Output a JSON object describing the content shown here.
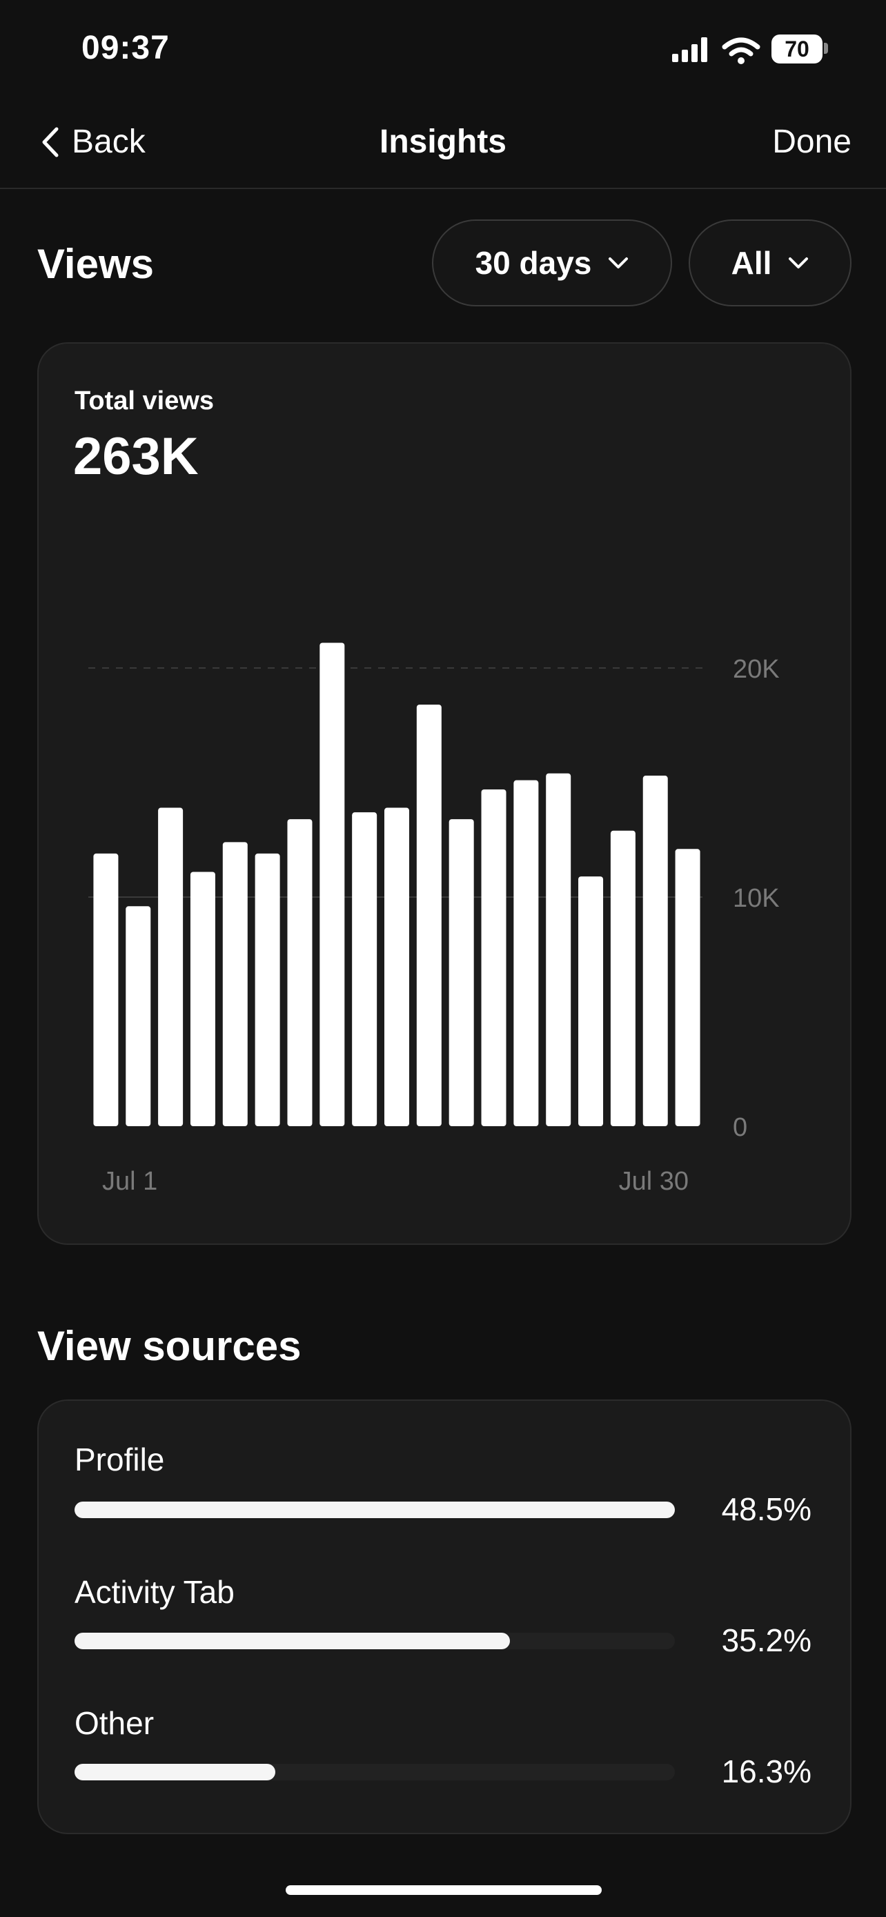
{
  "status": {
    "time": "09:37",
    "battery": "70"
  },
  "nav": {
    "back_label": "Back",
    "title": "Insights",
    "done_label": "Done"
  },
  "views": {
    "title": "Views",
    "range_filter": "30 days",
    "type_filter": "All",
    "total_label": "Total views",
    "total_value": "263K"
  },
  "chart_data": {
    "type": "bar",
    "values": [
      11900,
      9600,
      13900,
      11100,
      12400,
      11900,
      13400,
      21100,
      13700,
      13900,
      18400,
      13400,
      14700,
      15100,
      15400,
      10900,
      12900,
      15300,
      12100
    ],
    "ylim": [
      0,
      20000
    ],
    "y_ticks": [
      {
        "value": 20000,
        "label": "20K",
        "dashed": true
      },
      {
        "value": 10000,
        "label": "10K",
        "dashed": false
      },
      {
        "value": 0,
        "label": "0",
        "dashed": false
      }
    ],
    "x_start_label": "Jul 1",
    "x_end_label": "Jul 30",
    "bar_color": "#ffffff"
  },
  "sources": {
    "title": "View sources",
    "items": [
      {
        "label": "Profile",
        "percent": "48.5%",
        "fraction": 1.0
      },
      {
        "label": "Activity Tab",
        "percent": "35.2%",
        "fraction": 0.725
      },
      {
        "label": "Other",
        "percent": "16.3%",
        "fraction": 0.335
      }
    ]
  }
}
